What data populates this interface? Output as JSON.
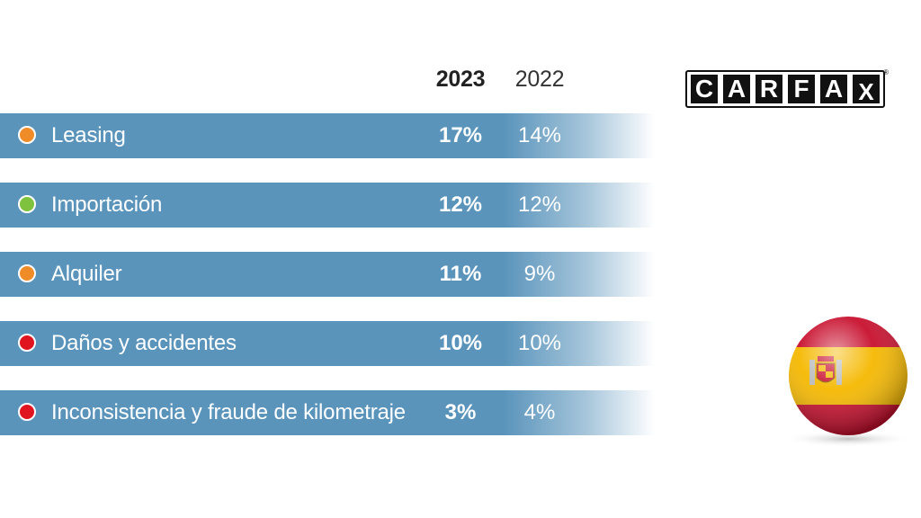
{
  "chart_data": {
    "type": "table",
    "columns": [
      "2023",
      "2022"
    ],
    "rows": [
      {
        "label": "Leasing",
        "dot_color": "#f08c28",
        "v2023": "17%",
        "v2022": "14%"
      },
      {
        "label": "Importación",
        "dot_color": "#7ec23e",
        "v2023": "12%",
        "v2022": "12%"
      },
      {
        "label": "Alquiler",
        "dot_color": "#f08c28",
        "v2023": "11%",
        "v2022": "9%"
      },
      {
        "label": "Daños y accidentes",
        "dot_color": "#e0141e",
        "v2023": "10%",
        "v2022": "10%"
      },
      {
        "label": "Inconsistencia y fraude de kilometraje",
        "dot_color": "#e0141e",
        "v2023": "3%",
        "v2022": "4%"
      }
    ]
  },
  "logo": {
    "letters": [
      "C",
      "A",
      "R",
      "F",
      "A",
      "X"
    ],
    "registered": "®"
  },
  "flag": {
    "icon": "spain-flag-sphere-icon"
  },
  "colors": {
    "row_bar": "#5a94bb",
    "orange": "#f08c28",
    "green": "#7ec23e",
    "red": "#e0141e"
  }
}
